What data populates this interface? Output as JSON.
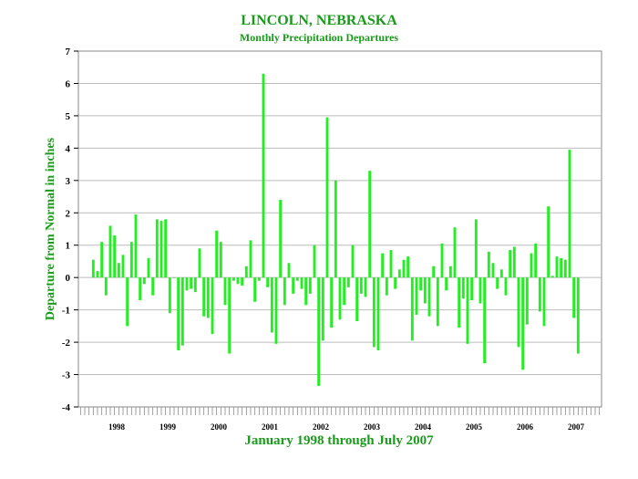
{
  "chart_data": {
    "type": "bar",
    "title": "LINCOLN, NEBRASKA",
    "subtitle": "Monthly Precipitation Departures",
    "xlabel": "January 1998 through July 2007",
    "ylabel": "Departure from Normal in inches",
    "ylim": [
      -4,
      7
    ],
    "yticks": [
      -4,
      -3,
      -2,
      -1,
      0,
      1,
      2,
      3,
      4,
      5,
      6,
      7
    ],
    "xlim_months": [
      "1997-10",
      "2007-12"
    ],
    "year_ticks": [
      "1998",
      "1999",
      "2000",
      "2001",
      "2002",
      "2003",
      "2004",
      "2005",
      "2006",
      "2007"
    ],
    "grid": "horizontal",
    "bar_color": "#22ee22",
    "series": [
      {
        "x_start": "1998-01",
        "x_end": "2007-07",
        "values": [
          0.55,
          0.2,
          1.1,
          -0.55,
          1.6,
          1.3,
          0.45,
          0.7,
          -1.5,
          1.1,
          1.95,
          -0.7,
          -0.2,
          0.6,
          -0.55,
          1.8,
          1.75,
          1.8,
          -1.1,
          0.0,
          -2.25,
          -2.1,
          -0.4,
          -0.35,
          -0.45,
          0.9,
          -1.2,
          -1.25,
          -1.75,
          1.45,
          1.1,
          -0.85,
          -2.35,
          -0.1,
          -0.2,
          -0.25,
          0.35,
          1.15,
          -0.75,
          -0.1,
          6.3,
          -0.3,
          -1.7,
          -2.05,
          2.4,
          -0.85,
          0.45,
          -0.5,
          -0.1,
          -0.35,
          -0.85,
          -0.5,
          1.0,
          -3.35,
          -1.95,
          4.95,
          -1.55,
          3.0,
          -1.3,
          -0.85,
          -0.3,
          1.0,
          -1.35,
          -0.5,
          -0.6,
          3.3,
          -2.15,
          -2.25,
          0.75,
          -0.55,
          0.85,
          -0.35,
          0.25,
          0.55,
          0.65,
          -1.95,
          -1.15,
          -0.4,
          -0.8,
          -1.2,
          0.35,
          -1.5,
          1.05,
          -0.4,
          0.35,
          1.55,
          -1.55,
          -0.65,
          -2.05,
          -0.7,
          1.8,
          -0.8,
          -2.65,
          0.8,
          0.45,
          -0.35,
          0.25,
          -0.55,
          0.85,
          0.95,
          -2.15,
          -2.85,
          -1.45,
          0.75,
          1.05,
          -1.05,
          -1.5,
          2.2,
          0.05,
          0.65,
          0.6,
          0.55,
          3.95,
          -1.25,
          -2.35
        ]
      }
    ]
  }
}
